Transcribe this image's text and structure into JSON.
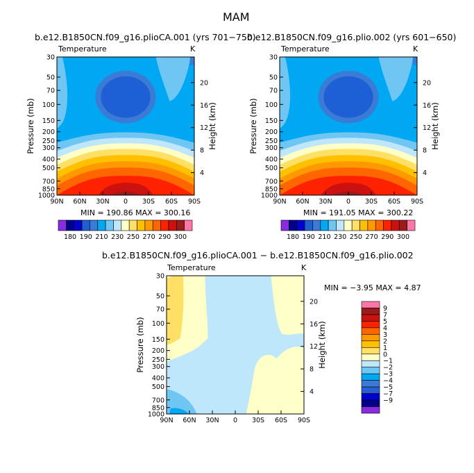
{
  "figure": {
    "title": "MAM"
  },
  "colors": {
    "palette_main": [
      "#8a2be2",
      "#00008b",
      "#0000cd",
      "#1f5fd6",
      "#3a7bd5",
      "#00a7f2",
      "#6fc6f2",
      "#bfe7fb",
      "#ffffc8",
      "#ffe066",
      "#ffc000",
      "#ff9900",
      "#ff6600",
      "#ff2200",
      "#cc1111",
      "#9b1b1b",
      "#ff77aa"
    ],
    "palette_diff": [
      "#8a2be2",
      "#00008b",
      "#0000cd",
      "#2a5fd4",
      "#3a7bd5",
      "#00a7f2",
      "#6fc6f2",
      "#bfe7fb",
      "#ffffc8",
      "#ffe066",
      "#ffc000",
      "#ff9900",
      "#ff6600",
      "#ff2200",
      "#cc1111",
      "#9b1b1b",
      "#ff77aa"
    ]
  },
  "chart_data": [
    {
      "type": "heatmap",
      "id": "panel-1",
      "title": "b.e12.B1850CN.f09_g16.plioCA.001 (yrs 701−750)",
      "left_label": "Temperature",
      "right_label": "K",
      "xlabel": "",
      "ylabel": "Pressure (mb)",
      "y2label": "Height (km)",
      "x_ticks": [
        "90N",
        "60N",
        "30N",
        "0",
        "30S",
        "60S",
        "90S"
      ],
      "y_ticks": [
        "30",
        "50",
        "70",
        "100",
        "150",
        "200",
        "250",
        "300",
        "400",
        "500",
        "700",
        "850",
        "1000"
      ],
      "y2_ticks": [
        "20",
        "16",
        "12",
        "8",
        "4"
      ],
      "ylim": [
        1000,
        30
      ],
      "stats": "MIN = 190.86   MAX = 300.16",
      "contour_levels": [
        180,
        190,
        200,
        210,
        220,
        230,
        240,
        250,
        260,
        270,
        280,
        290,
        300
      ],
      "colorbar_labels": [
        "180",
        "190",
        "210",
        "230",
        "250",
        "270",
        "290",
        "300"
      ],
      "min": 190.86,
      "max": 300.16
    },
    {
      "type": "heatmap",
      "id": "panel-2",
      "title": "b.e12.B1850CN.f09_g16.plio.002 (yrs 601−650)",
      "left_label": "Temperature",
      "right_label": "K",
      "xlabel": "",
      "ylabel": "Pressure (mb)",
      "y2label": "Height (km)",
      "x_ticks": [
        "90N",
        "60N",
        "30N",
        "0",
        "30S",
        "60S",
        "90S"
      ],
      "y_ticks": [
        "30",
        "50",
        "70",
        "100",
        "150",
        "200",
        "250",
        "300",
        "400",
        "500",
        "700",
        "850",
        "1000"
      ],
      "y2_ticks": [
        "20",
        "16",
        "12",
        "8",
        "4"
      ],
      "ylim": [
        1000,
        30
      ],
      "stats": "MIN = 191.05   MAX = 300.22",
      "contour_levels": [
        180,
        190,
        200,
        210,
        220,
        230,
        240,
        250,
        260,
        270,
        280,
        290,
        300
      ],
      "colorbar_labels": [
        "180",
        "190",
        "210",
        "230",
        "250",
        "270",
        "290",
        "300"
      ],
      "min": 191.05,
      "max": 300.22
    },
    {
      "type": "heatmap",
      "id": "panel-diff",
      "title": "b.e12.B1850CN.f09_g16.plioCA.001 − b.e12.B1850CN.f09_g16.plio.002",
      "left_label": "Temperature",
      "right_label": "K",
      "xlabel": "",
      "ylabel": "Pressure (mb)",
      "y2label": "Height (km)",
      "x_ticks": [
        "90N",
        "60N",
        "30N",
        "0",
        "30S",
        "60S",
        "90S"
      ],
      "y_ticks": [
        "30",
        "50",
        "70",
        "100",
        "150",
        "200",
        "250",
        "300",
        "400",
        "500",
        "700",
        "850",
        "1000"
      ],
      "y2_ticks": [
        "20",
        "16",
        "12",
        "8",
        "4"
      ],
      "ylim": [
        1000,
        30
      ],
      "stats": "MIN =  −3.95   MAX =   4.87",
      "contour_levels": [
        -9,
        -7,
        -5,
        -4,
        -3,
        -2,
        -1,
        0,
        1,
        2,
        3,
        4,
        5,
        7,
        9
      ],
      "colorbar_labels": [
        "9",
        "7",
        "5",
        "4",
        "3",
        "2",
        "1",
        "0",
        "−1",
        "−2",
        "−3",
        "−4",
        "−5",
        "−7",
        "−9"
      ],
      "min": -3.95,
      "max": 4.87
    }
  ]
}
